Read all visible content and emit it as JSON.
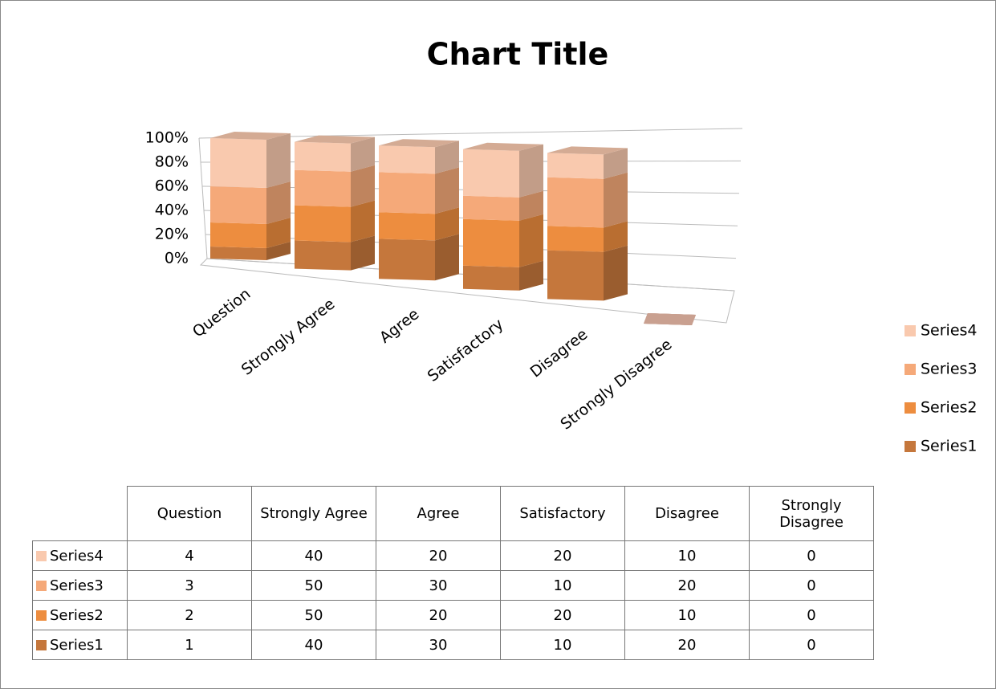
{
  "chart_data": {
    "type": "bar",
    "stacking": "percent",
    "title": "Chart Title",
    "categories": [
      "Question",
      "Strongly Agree",
      "Agree",
      "Satisfactory",
      "Disagree",
      "Strongly Disagree"
    ],
    "series": [
      {
        "name": "Series1",
        "color": "#c5773c",
        "values": [
          1,
          40,
          30,
          10,
          20,
          0
        ]
      },
      {
        "name": "Series2",
        "color": "#ed8d3f",
        "values": [
          2,
          50,
          20,
          20,
          10,
          0
        ]
      },
      {
        "name": "Series3",
        "color": "#f5a979",
        "values": [
          3,
          50,
          30,
          10,
          20,
          0
        ]
      },
      {
        "name": "Series4",
        "color": "#f9c9ae",
        "values": [
          4,
          40,
          20,
          20,
          10,
          0
        ]
      }
    ],
    "ylim": [
      0,
      100
    ],
    "yticks": [
      {
        "value": 0,
        "label": "0%"
      },
      {
        "value": 20,
        "label": "20%"
      },
      {
        "value": 40,
        "label": "40%"
      },
      {
        "value": 60,
        "label": "60%"
      },
      {
        "value": 80,
        "label": "80%"
      },
      {
        "value": 100,
        "label": "100%"
      }
    ],
    "grid": true,
    "legend": "right",
    "data_table": true
  }
}
